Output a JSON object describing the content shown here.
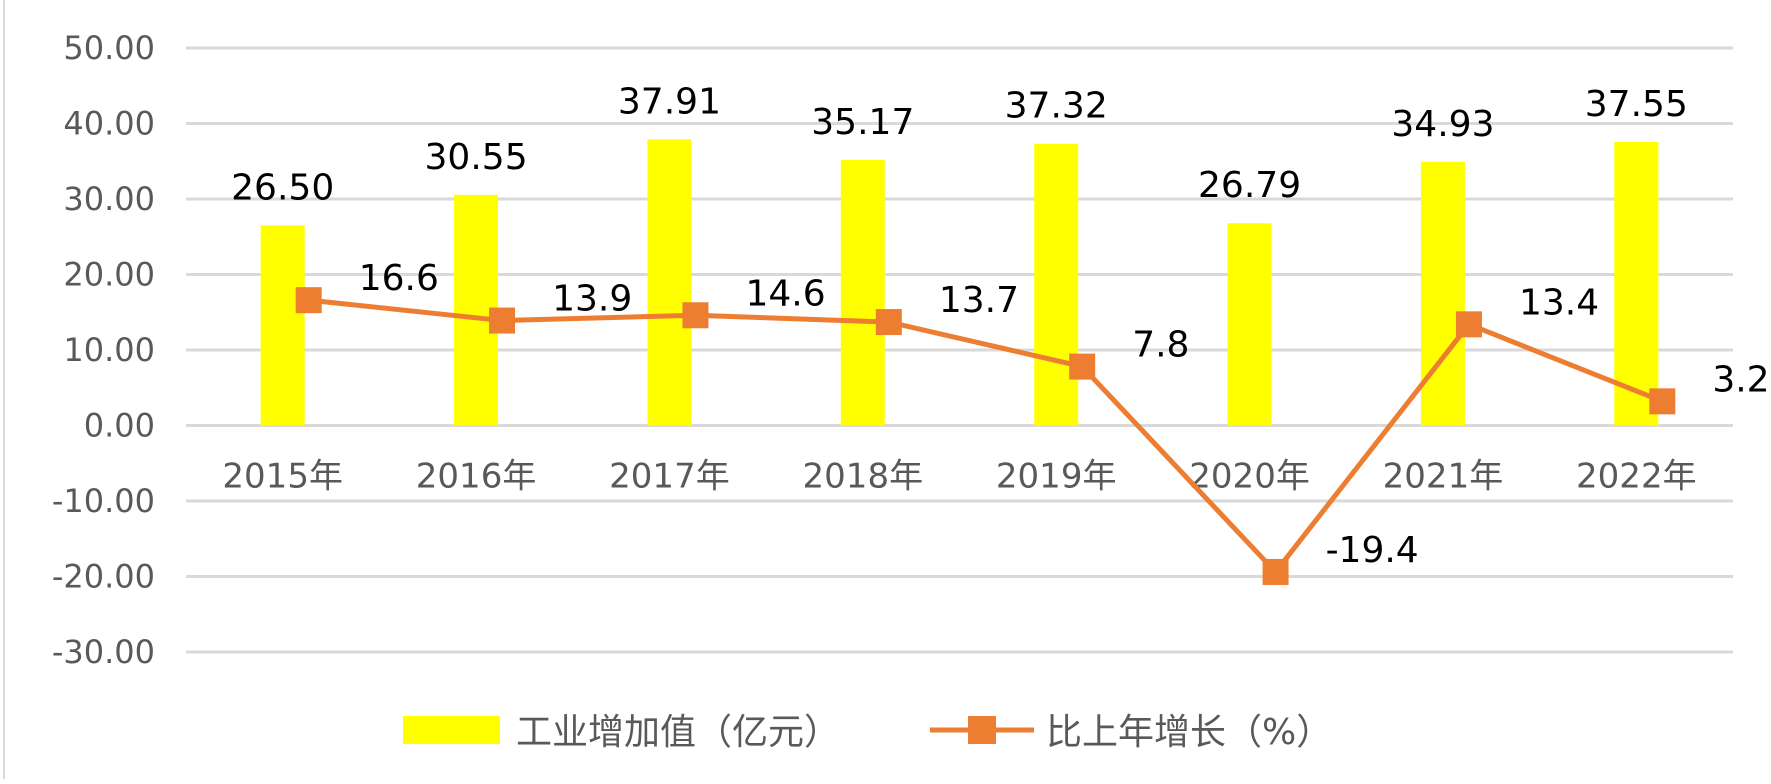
{
  "chart_data": {
    "type": "bar+line",
    "categories": [
      "2015年",
      "2016年",
      "2017年",
      "2018年",
      "2019年",
      "2020年",
      "2021年",
      "2022年"
    ],
    "series": [
      {
        "name": "工业增加值（亿元）",
        "type": "bar",
        "color": "#FFFF00",
        "values": [
          26.5,
          30.55,
          37.91,
          35.17,
          37.32,
          26.79,
          34.93,
          37.55
        ],
        "labels": [
          "26.50",
          "30.55",
          "37.91",
          "35.17",
          "37.32",
          "26.79",
          "34.93",
          "37.55"
        ]
      },
      {
        "name": "比上年增长（%）",
        "type": "line",
        "color": "#ED7D31",
        "marker": "square",
        "values": [
          16.6,
          13.9,
          14.6,
          13.7,
          7.8,
          -19.4,
          13.4,
          3.2
        ],
        "labels": [
          "16.6",
          "13.9",
          "14.6",
          "13.7",
          "7.8",
          "-19.4",
          "13.4",
          "3.2"
        ]
      }
    ],
    "yaxis": {
      "min": -30,
      "max": 50,
      "step": 10,
      "ticks": [
        "-30.00",
        "-20.00",
        "-10.00",
        "0.00",
        "10.00",
        "20.00",
        "30.00",
        "40.00",
        "50.00"
      ]
    },
    "grid": true,
    "legend_position": "bottom"
  }
}
